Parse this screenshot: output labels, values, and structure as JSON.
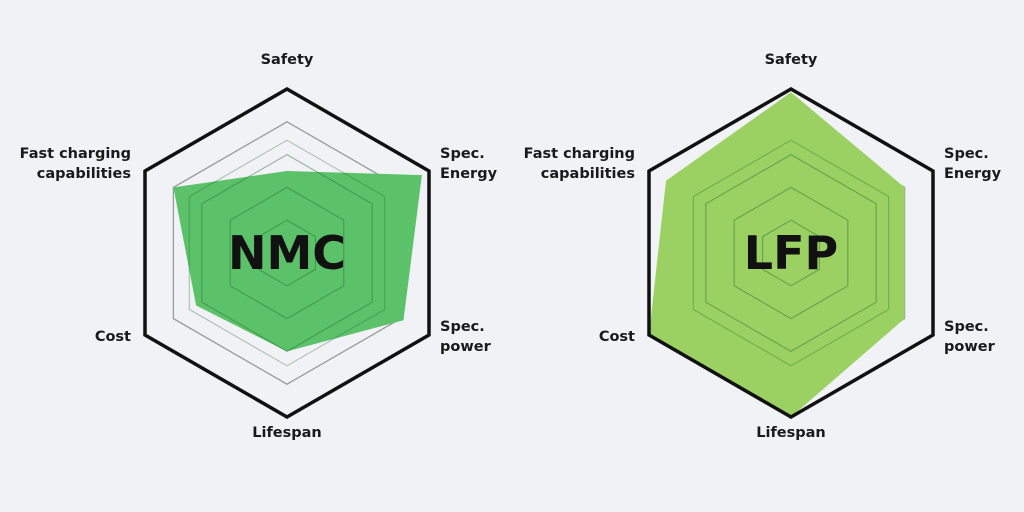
{
  "colors": {
    "background": "#f1f2f6",
    "outline": "#111111",
    "grid_light": "#9a9a9a",
    "grid_inner": "#1f6b2c"
  },
  "chart_data": [
    {
      "type": "radar",
      "center_label": "NMC",
      "fill_color": "#5cc26a",
      "axes": [
        {
          "label_lines": [
            "Safety"
          ],
          "anchor": "middle"
        },
        {
          "label_lines": [
            "Spec.",
            "Energy"
          ],
          "anchor": "start"
        },
        {
          "label_lines": [
            "Spec.",
            "power"
          ],
          "anchor": "start"
        },
        {
          "label_lines": [
            "Lifespan"
          ],
          "anchor": "middle"
        },
        {
          "label_lines": [
            "Cost"
          ],
          "anchor": "end"
        },
        {
          "label_lines": [
            "Fast charging",
            "capabilities"
          ],
          "anchor": "end"
        }
      ],
      "values": [
        0.5,
        0.95,
        0.82,
        0.6,
        0.64,
        0.8
      ],
      "max": 1,
      "grid_rings": 5
    },
    {
      "type": "radar",
      "center_label": "LFP",
      "fill_color": "#9bd163",
      "axes": [
        {
          "label_lines": [
            "Safety"
          ],
          "anchor": "middle"
        },
        {
          "label_lines": [
            "Spec.",
            "Energy"
          ],
          "anchor": "start"
        },
        {
          "label_lines": [
            "Spec.",
            "power"
          ],
          "anchor": "start"
        },
        {
          "label_lines": [
            "Lifespan"
          ],
          "anchor": "middle"
        },
        {
          "label_lines": [
            "Cost"
          ],
          "anchor": "end"
        },
        {
          "label_lines": [
            "Fast charging",
            "capabilities"
          ],
          "anchor": "end"
        }
      ],
      "values": [
        0.98,
        0.8,
        0.8,
        1.0,
        1.0,
        0.88
      ],
      "max": 1,
      "grid_rings": 5
    }
  ]
}
